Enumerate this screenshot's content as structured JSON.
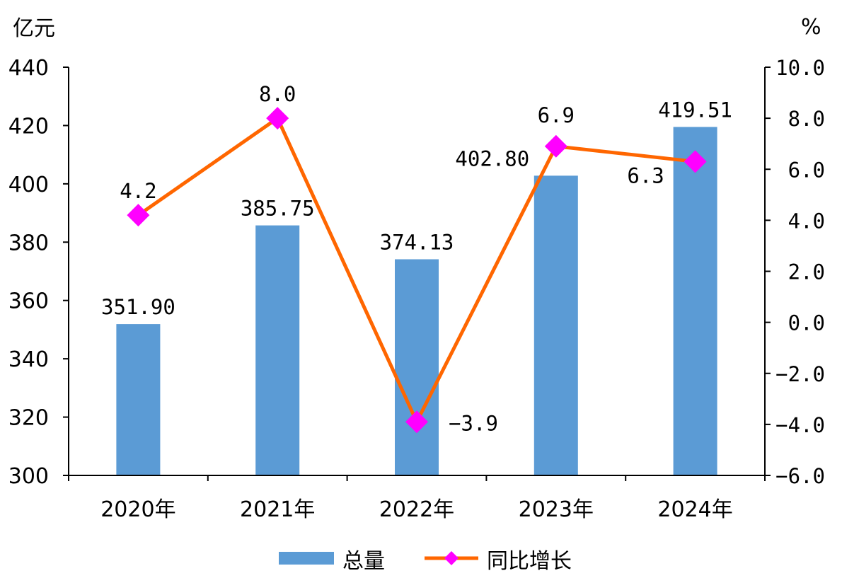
{
  "chart_data": {
    "type": "bar",
    "categories": [
      "2020年",
      "2021年",
      "2022年",
      "2023年",
      "2024年"
    ],
    "series": [
      {
        "name": "总量",
        "type": "bar",
        "axis": "left",
        "values": [
          351.9,
          385.75,
          374.13,
          402.8,
          419.51
        ],
        "labels": [
          "351.90",
          "385.75",
          "374.13",
          "402.80",
          "419.51"
        ],
        "color": "#5B9BD5"
      },
      {
        "name": "同比增长",
        "type": "line",
        "axis": "right",
        "values": [
          4.2,
          8.0,
          -3.9,
          6.9,
          6.3
        ],
        "labels": [
          "4.2",
          "8.0",
          "-3.9",
          "6.9",
          "6.3"
        ],
        "color": "#FF6600",
        "marker": "diamond",
        "marker_color": "#FF00FF"
      }
    ],
    "y_left": {
      "unit": "亿元",
      "ylim": [
        300,
        440
      ],
      "ticks": [
        "300",
        "320",
        "340",
        "360",
        "380",
        "400",
        "420",
        "440"
      ]
    },
    "y_right": {
      "unit": "%",
      "ylim": [
        -6.0,
        10.0
      ],
      "ticks": [
        "-6.0",
        "-4.0",
        "-2.0",
        "0.0",
        "2.0",
        "4.0",
        "6.0",
        "8.0",
        "10.0"
      ]
    },
    "grid": false,
    "legend": "bottom"
  }
}
